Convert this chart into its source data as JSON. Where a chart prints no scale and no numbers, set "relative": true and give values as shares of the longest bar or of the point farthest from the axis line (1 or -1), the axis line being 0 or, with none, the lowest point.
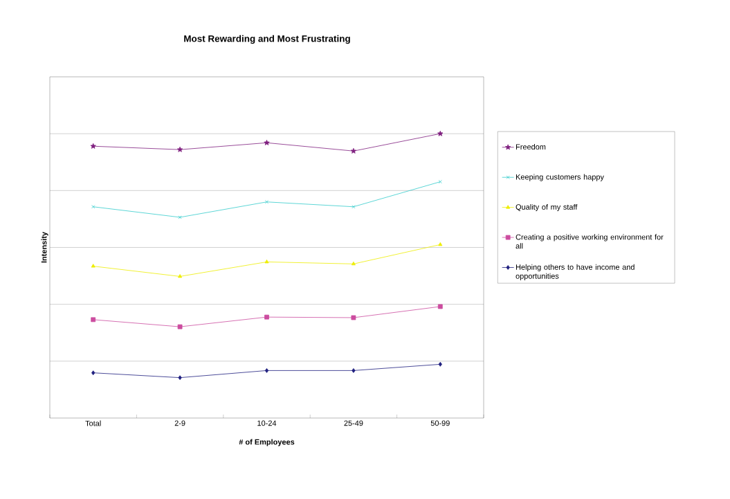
{
  "chart_data": {
    "type": "line",
    "title": "Most Rewarding and Most Frustrating",
    "xlabel": "# of Employees",
    "ylabel": "Intensity",
    "categories": [
      "Total",
      "2-9",
      "10-24",
      "25-49",
      "50-99"
    ],
    "relative": true,
    "grid": "y",
    "legend": "right",
    "line_style": "solid",
    "series": [
      {
        "name": "Freedom",
        "color": "#7f1f7f",
        "marker": "star",
        "values": [
          0.956,
          0.944,
          0.968,
          0.939,
          1.0
        ]
      },
      {
        "name": "Keeping customers happy",
        "color": "#33cccc",
        "marker": "cross",
        "values": [
          0.743,
          0.706,
          0.76,
          0.743,
          0.831
        ]
      },
      {
        "name": "Quality of my staff",
        "color": "#eeee00",
        "marker": "triangle",
        "values": [
          0.534,
          0.498,
          0.549,
          0.542,
          0.61
        ]
      },
      {
        "name": "Creating a positive working environment for all",
        "color": "#cc4c9f",
        "marker": "square",
        "values": [
          0.346,
          0.321,
          0.355,
          0.353,
          0.392
        ]
      },
      {
        "name": "Helping others to have income and opportunities",
        "color": "#1f1f7f",
        "marker": "diamond",
        "values": [
          0.159,
          0.142,
          0.167,
          0.167,
          0.189
        ]
      }
    ]
  }
}
